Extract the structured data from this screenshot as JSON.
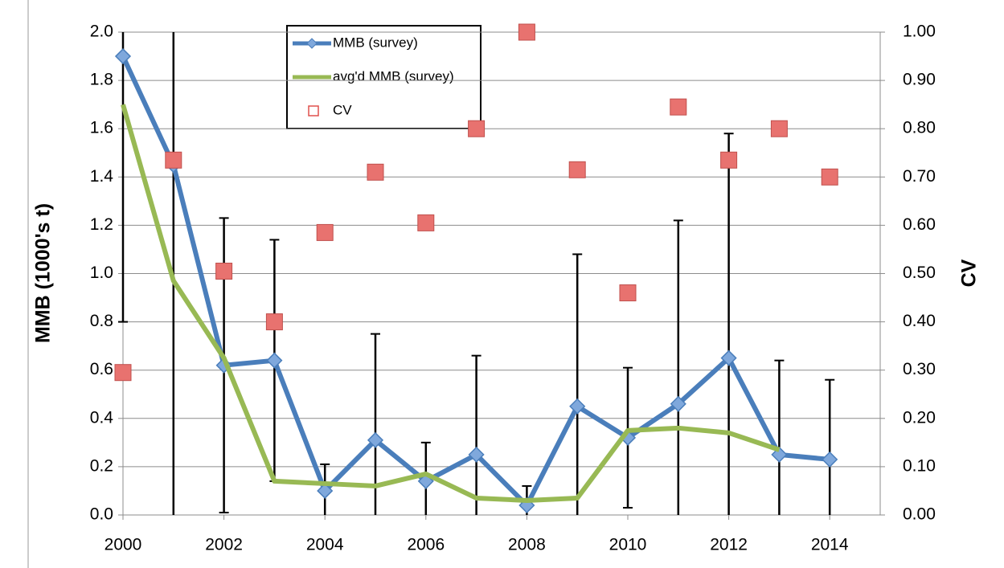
{
  "chart_data": {
    "type": "line",
    "y_label": "MMB (1000's t)",
    "y2_label": "CV",
    "x": [
      2000,
      2001,
      2002,
      2003,
      2004,
      2005,
      2006,
      2007,
      2008,
      2009,
      2010,
      2011,
      2012,
      2013,
      2014
    ],
    "series": [
      {
        "name": "MMB (survey)",
        "color": "#4a7ebb",
        "marker": "diamond",
        "values": [
          1.9,
          1.45,
          0.62,
          0.64,
          0.1,
          0.31,
          0.14,
          0.25,
          0.04,
          0.45,
          0.32,
          0.46,
          0.65,
          0.25,
          0.23
        ],
        "errors": [
          1.1,
          1.6,
          0.61,
          0.5,
          0.11,
          0.44,
          0.16,
          0.41,
          0.08,
          0.63,
          0.29,
          0.76,
          0.93,
          0.39,
          0.33
        ]
      },
      {
        "name": "avg'd MMB (survey)",
        "color": "#98b954",
        "values": [
          1.7,
          0.97,
          0.65,
          0.14,
          0.13,
          0.12,
          0.17,
          0.07,
          0.06,
          0.07,
          0.35,
          0.36,
          0.34,
          0.27,
          null
        ]
      },
      {
        "name": "CV",
        "color": "#e0504d",
        "marker": "square",
        "axis": "y2",
        "values": [
          0.295,
          0.735,
          0.505,
          0.4,
          0.585,
          0.71,
          0.605,
          0.8,
          1.0,
          0.715,
          0.46,
          0.845,
          0.735,
          0.8,
          0.7
        ]
      }
    ],
    "xlim": [
      2000,
      2015
    ],
    "xticks": [
      2000,
      2002,
      2004,
      2006,
      2008,
      2010,
      2012,
      2014
    ],
    "ylim": [
      0,
      2
    ],
    "yticks": [
      {
        "value": 0,
        "label": "0.0"
      },
      {
        "value": 0.2,
        "label": "0.2"
      },
      {
        "value": 0.4,
        "label": "0.4"
      },
      {
        "value": 0.6,
        "label": "0.6"
      },
      {
        "value": 0.8,
        "label": "0.8"
      },
      {
        "value": 1,
        "label": "1.0"
      },
      {
        "value": 1.2,
        "label": "1.2"
      },
      {
        "value": 1.4,
        "label": "1.4"
      },
      {
        "value": 1.6,
        "label": "1.6"
      },
      {
        "value": 1.8,
        "label": "1.8"
      },
      {
        "value": 2,
        "label": "2.0"
      }
    ],
    "y2lim": [
      0,
      1
    ],
    "y2ticks": [
      {
        "value": 0,
        "label": "0.00"
      },
      {
        "value": 0.1,
        "label": "0.10"
      },
      {
        "value": 0.2,
        "label": "0.20"
      },
      {
        "value": 0.3,
        "label": "0.30"
      },
      {
        "value": 0.4,
        "label": "0.40"
      },
      {
        "value": 0.5,
        "label": "0.50"
      },
      {
        "value": 0.6,
        "label": "0.60"
      },
      {
        "value": 0.7,
        "label": "0.70"
      },
      {
        "value": 0.8,
        "label": "0.80"
      },
      {
        "value": 0.9,
        "label": "0.90"
      },
      {
        "value": 1,
        "label": "1.00"
      }
    ],
    "grid": true
  }
}
